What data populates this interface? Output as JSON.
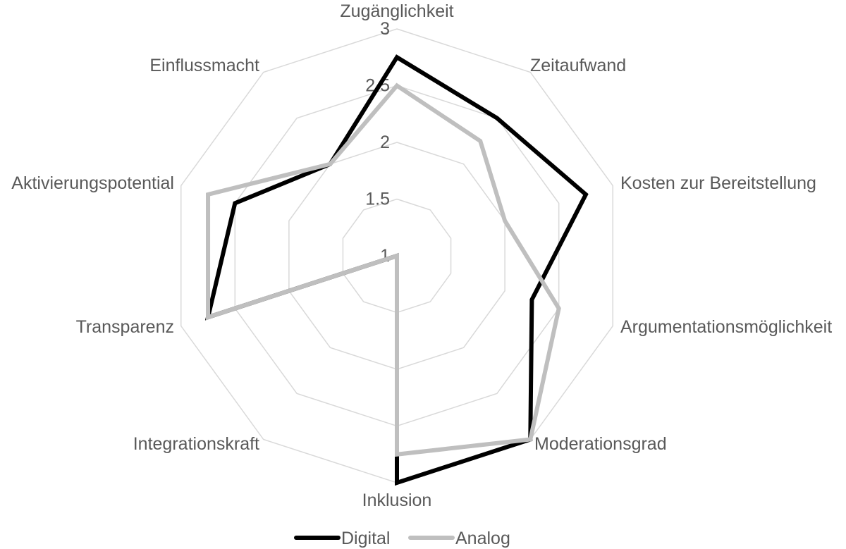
{
  "chart_data": {
    "type": "radar",
    "title": "",
    "categories": [
      "Zugänglichkeit",
      "Zeitaufwand",
      "Kosten zur Bereitstellung",
      "Argumentationsmöglichkeit",
      "Moderationsgrad",
      "Inklusion",
      "Integrationskraft",
      "Transparenz",
      "Aktivierungspotential",
      "Einflussmacht"
    ],
    "series": [
      {
        "name": "Digital",
        "color": "#000000",
        "values": [
          2.75,
          2.5,
          2.75,
          2.25,
          3.0,
          3.0,
          1.0,
          2.75,
          2.5,
          2.0
        ]
      },
      {
        "name": "Analog",
        "color": "#bfbfbf",
        "values": [
          2.5,
          2.25,
          2.0,
          2.5,
          3.0,
          2.75,
          1.0,
          2.75,
          2.75,
          2.0
        ]
      }
    ],
    "rlim": [
      1,
      3
    ],
    "ticks": [
      "1",
      "1.5",
      "2",
      "2.5",
      "3"
    ],
    "grid": true,
    "legend_position": "bottom"
  },
  "legend": {
    "items": [
      "Digital",
      "Analog"
    ]
  }
}
